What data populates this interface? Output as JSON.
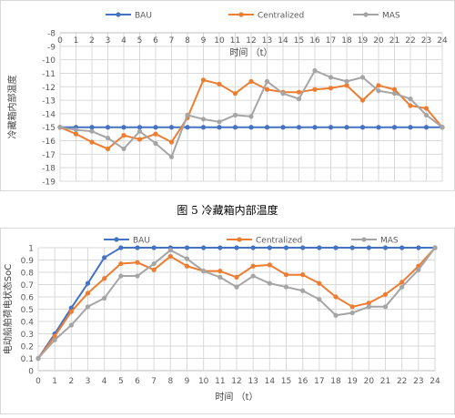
{
  "figure_caption": "图 5 冷藏箱内部温度",
  "legend_labels": {
    "bau": "BAU",
    "centralized": "Centralized",
    "mas": "MAS"
  },
  "colors": {
    "bau": "#4472C4",
    "centralized": "#ED7D31",
    "mas": "#A5A5A5",
    "grid": "#d9d9d9",
    "text": "#595959"
  },
  "chart_data": [
    {
      "type": "line",
      "xlabel": "时间 （t）",
      "ylabel": "冷藏箱内部温度",
      "x": [
        0,
        1,
        2,
        3,
        4,
        5,
        6,
        7,
        8,
        9,
        10,
        11,
        12,
        13,
        14,
        15,
        16,
        17,
        18,
        19,
        20,
        21,
        22,
        23,
        24
      ],
      "ylim": [
        -19,
        -8
      ],
      "y_ticks": [
        -8,
        -9,
        -10,
        -11,
        -12,
        -13,
        -14,
        -15,
        -16,
        -17,
        -18,
        -19
      ],
      "x_axis_position": "top",
      "grid": true,
      "legend_position": "top",
      "series": [
        {
          "name": "BAU",
          "values": [
            -15,
            -15,
            -15,
            -15,
            -15,
            -15,
            -15,
            -15,
            -15,
            -15,
            -15,
            -15,
            -15,
            -15,
            -15,
            -15,
            -15,
            -15,
            -15,
            -15,
            -15,
            -15,
            -15,
            -15,
            -15
          ]
        },
        {
          "name": "Centralized",
          "values": [
            -15,
            -15.5,
            -16.1,
            -16.6,
            -15.6,
            -15.9,
            -15.5,
            -16.1,
            -14.3,
            -11.5,
            -11.8,
            -12.5,
            -11.6,
            -12.2,
            -12.4,
            -12.4,
            -12.2,
            -12.1,
            -11.9,
            -13.0,
            -11.9,
            -12.2,
            -13.4,
            -13.6,
            -15
          ]
        },
        {
          "name": "MAS",
          "values": [
            -15,
            -15.2,
            -15.3,
            -15.8,
            -16.6,
            -15.3,
            -16.2,
            -17.2,
            -14.1,
            -14.4,
            -14.6,
            -14.1,
            -14.2,
            -11.6,
            -12.5,
            -12.9,
            -10.8,
            -11.3,
            -11.6,
            -11.3,
            -12.3,
            -12.5,
            -12.9,
            -14.1,
            -15
          ]
        }
      ]
    },
    {
      "type": "line",
      "xlabel": "时间 （t）",
      "ylabel": "电动船舶荷电状态SoC",
      "x": [
        0,
        1,
        2,
        3,
        4,
        5,
        6,
        7,
        8,
        9,
        10,
        11,
        12,
        13,
        14,
        15,
        16,
        17,
        18,
        19,
        20,
        21,
        22,
        23,
        24
      ],
      "ylim": [
        0,
        1
      ],
      "y_ticks": [
        0,
        0.1,
        0.2,
        0.3,
        0.4,
        0.5,
        0.6,
        0.7,
        0.8,
        0.9,
        1
      ],
      "x_axis_position": "bottom",
      "grid": true,
      "legend_position": "top",
      "series": [
        {
          "name": "BAU",
          "values": [
            0.1,
            0.3,
            0.51,
            0.71,
            0.92,
            1,
            1,
            1,
            1,
            1,
            1,
            1,
            1,
            1,
            1,
            1,
            1,
            1,
            1,
            1,
            1,
            1,
            1,
            1,
            1
          ]
        },
        {
          "name": "Centralized",
          "values": [
            0.1,
            0.28,
            0.48,
            0.63,
            0.75,
            0.87,
            0.88,
            0.82,
            0.93,
            0.85,
            0.81,
            0.81,
            0.76,
            0.85,
            0.86,
            0.78,
            0.78,
            0.71,
            0.6,
            0.52,
            0.55,
            0.62,
            0.72,
            0.85,
            1
          ]
        },
        {
          "name": "MAS",
          "values": [
            0.1,
            0.25,
            0.37,
            0.52,
            0.59,
            0.77,
            0.77,
            0.87,
            0.98,
            0.91,
            0.81,
            0.76,
            0.68,
            0.77,
            0.71,
            0.68,
            0.65,
            0.58,
            0.45,
            0.47,
            0.52,
            0.52,
            0.68,
            0.82,
            1
          ]
        }
      ]
    }
  ]
}
